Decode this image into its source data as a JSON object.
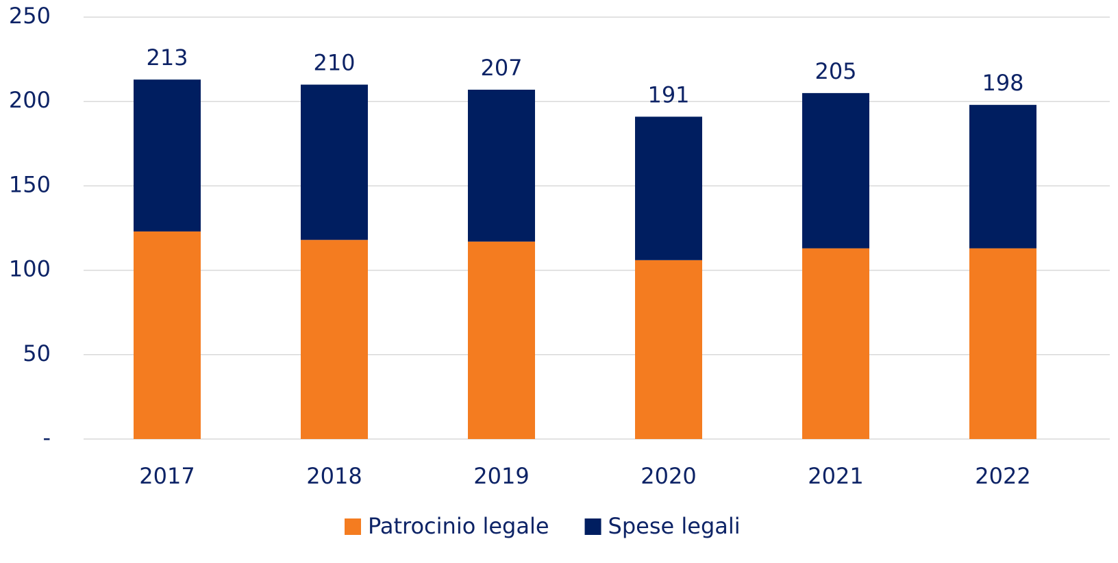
{
  "chart_data": {
    "type": "stacked_bar",
    "categories": [
      "2017",
      "2018",
      "2019",
      "2020",
      "2021",
      "2022"
    ],
    "series": [
      {
        "name": "Patrocinio legale",
        "color": "#f47c20",
        "values": [
          123,
          118,
          117,
          106,
          113,
          113
        ]
      },
      {
        "name": "Spese legali",
        "color": "#001e60",
        "values": [
          90,
          92,
          90,
          85,
          92,
          85
        ]
      }
    ],
    "totals": [
      213,
      210,
      207,
      191,
      205,
      198
    ],
    "ylim": [
      0,
      250
    ],
    "yticks": [
      {
        "value": 0,
        "label": "-"
      },
      50,
      100,
      150,
      200,
      250
    ],
    "grid": true,
    "legend": "bottom"
  }
}
